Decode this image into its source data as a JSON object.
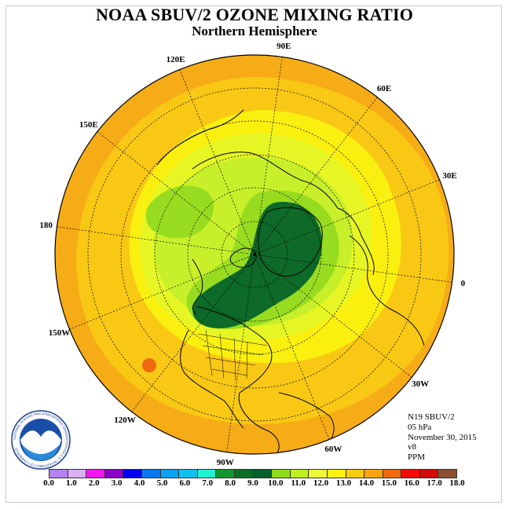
{
  "title": "NOAA SBUV/2 OZONE MIXING RATIO",
  "subtitle": "Northern Hemisphere",
  "longitude_labels": [
    {
      "text": "90E",
      "angle": 90
    },
    {
      "text": "60E",
      "angle": 60
    },
    {
      "text": "30E",
      "angle": 30
    },
    {
      "text": "0",
      "angle": 0
    },
    {
      "text": "30W",
      "angle": -30
    },
    {
      "text": "60W",
      "angle": -60
    },
    {
      "text": "90W",
      "angle": -90
    },
    {
      "text": "120W",
      "angle": -120
    },
    {
      "text": "150W",
      "angle": -150
    },
    {
      "text": "180",
      "angle": 180
    },
    {
      "text": "150E",
      "angle": 150
    },
    {
      "text": "120E",
      "angle": 120
    }
  ],
  "info": {
    "satellite": "N19 SBUV/2",
    "level": "05 hPa",
    "date": "November 30, 2015",
    "version": "v8",
    "units": "PPM"
  },
  "legend": {
    "colors": [
      "#b482f0",
      "#d8b0f4",
      "#f018f0",
      "#8c00c8",
      "#0000f0",
      "#0a78f0",
      "#0ca0f0",
      "#12c0f0",
      "#20f0d4",
      "#10962c",
      "#0a6e24",
      "#006030",
      "#90dc1c",
      "#bef020",
      "#ecf838",
      "#fcf010",
      "#f8cc10",
      "#f8a410",
      "#f06810",
      "#f00c08",
      "#d20c08",
      "#8c5030"
    ],
    "ticks": [
      "0.0",
      "1.0",
      "2.0",
      "3.0",
      "4.0",
      "5.0",
      "6.0",
      "7.0",
      "8.0",
      "9.0",
      "10.0",
      "11.0",
      "12.0",
      "13.0",
      "14.0",
      "15.0",
      "16.0",
      "17.0",
      "18.0"
    ]
  },
  "logo": {
    "label": "NOAA",
    "ring_text": "NATIONAL OCEANIC AND ATMOSPHERIC ADMINISTRATION U.S. DEPARTMENT OF COMMERCE"
  },
  "colors": {
    "outer_orange": "#f6ac16",
    "mid_orange": "#f8c814",
    "yellow": "#faf010",
    "light_yellow": "#e6f624",
    "lime": "#c8f02a",
    "green": "#98dc20",
    "dark_green": "#0d6a28"
  }
}
